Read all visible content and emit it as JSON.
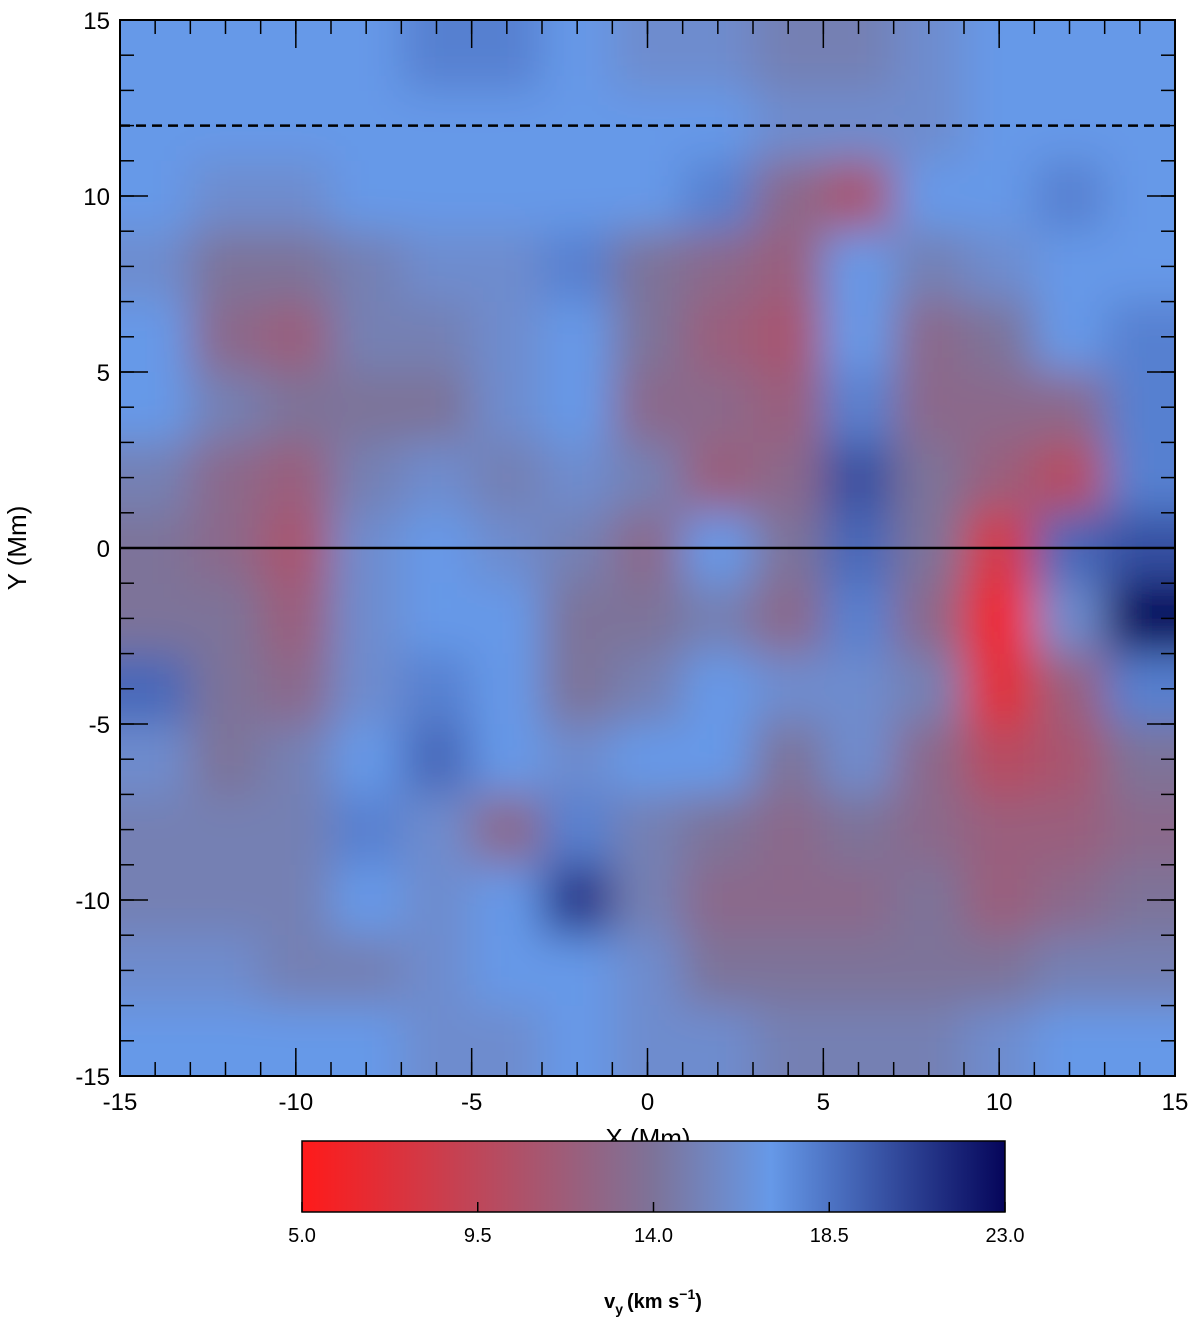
{
  "chart_data": {
    "type": "heatmap",
    "x_label": "X (Mm)",
    "y_label": "Y (Mm)",
    "x": [
      -14,
      -12,
      -10,
      -8,
      -6,
      -4,
      -2,
      0,
      2,
      4,
      6,
      8,
      10,
      12,
      14
    ],
    "y": [
      14,
      12,
      10,
      8,
      6,
      4,
      2,
      0,
      -2,
      -4,
      -6,
      -8,
      -10,
      -12,
      -14
    ],
    "values": [
      [
        17,
        17,
        17,
        17,
        18,
        18,
        17,
        16,
        16,
        15,
        15,
        16,
        17,
        17,
        17
      ],
      [
        17,
        17,
        17,
        17,
        17,
        17,
        17,
        17,
        17,
        16,
        16,
        16,
        17,
        17,
        17
      ],
      [
        17,
        16,
        16,
        17,
        17,
        17,
        17,
        17,
        18,
        13,
        11,
        17,
        17,
        18,
        17
      ],
      [
        16,
        14,
        14,
        15,
        16,
        16,
        18,
        14,
        13,
        12,
        17,
        15,
        16,
        17,
        17
      ],
      [
        17,
        13,
        12,
        15,
        15,
        16,
        17,
        14,
        12,
        11,
        17,
        13,
        14,
        17,
        18
      ],
      [
        17,
        15,
        14,
        14,
        14,
        16,
        17,
        13,
        13,
        12,
        18,
        13,
        13,
        13,
        18
      ],
      [
        15,
        13,
        12,
        15,
        16,
        15,
        16,
        15,
        12,
        13,
        20,
        14,
        12,
        10,
        18
      ],
      [
        14,
        13,
        11,
        16,
        17,
        16,
        15,
        13,
        17,
        14,
        19,
        14,
        8,
        19,
        20
      ],
      [
        14,
        14,
        12,
        16,
        17,
        17,
        14,
        14,
        15,
        13,
        18,
        13,
        6,
        16,
        23
      ],
      [
        19,
        14,
        13,
        16,
        18,
        17,
        14,
        15,
        17,
        16,
        16,
        15,
        7,
        12,
        18
      ],
      [
        16,
        14,
        15,
        17,
        19,
        17,
        16,
        17,
        17,
        14,
        16,
        13,
        10,
        11,
        14
      ],
      [
        15,
        15,
        15,
        18,
        16,
        13,
        18,
        15,
        14,
        13,
        14,
        13,
        12,
        12,
        13
      ],
      [
        15,
        15,
        15,
        17,
        16,
        17,
        21,
        15,
        13,
        13,
        13,
        14,
        12,
        13,
        14
      ],
      [
        16,
        16,
        15,
        15,
        16,
        17,
        17,
        16,
        14,
        14,
        14,
        14,
        14,
        15,
        15
      ],
      [
        17,
        17,
        17,
        17,
        16,
        16,
        17,
        16,
        16,
        15,
        15,
        15,
        16,
        17,
        17
      ]
    ],
    "xlim": [
      -15,
      15
    ],
    "ylim": [
      -15,
      15
    ],
    "xticks": [
      -15,
      -10,
      -5,
      0,
      5,
      10,
      15
    ],
    "yticks": [
      -15,
      -10,
      -5,
      0,
      5,
      10,
      15
    ],
    "minor_tick_step": 1,
    "hlines": [
      {
        "y": 12,
        "style": "dashed"
      },
      {
        "y": 0,
        "style": "solid"
      }
    ],
    "colorscale": [
      [
        5,
        "#ff1a1a"
      ],
      [
        14,
        "#7d7399"
      ],
      [
        17,
        "#6699e8"
      ],
      [
        23,
        "#05055a"
      ]
    ],
    "clim": [
      5,
      23
    ],
    "colorbar_ticks": [
      {
        "value": 5,
        "label": "5.0"
      },
      {
        "value": 9.5,
        "label": "9.5"
      },
      {
        "value": 14,
        "label": "14.0"
      },
      {
        "value": 18.5,
        "label": "18.5"
      },
      {
        "value": 23,
        "label": "23.0"
      }
    ],
    "colorbar_label": {
      "symbol": "v",
      "subscript": "y",
      "unit": "(km s",
      "exponent": "−1",
      "close": ")"
    }
  }
}
